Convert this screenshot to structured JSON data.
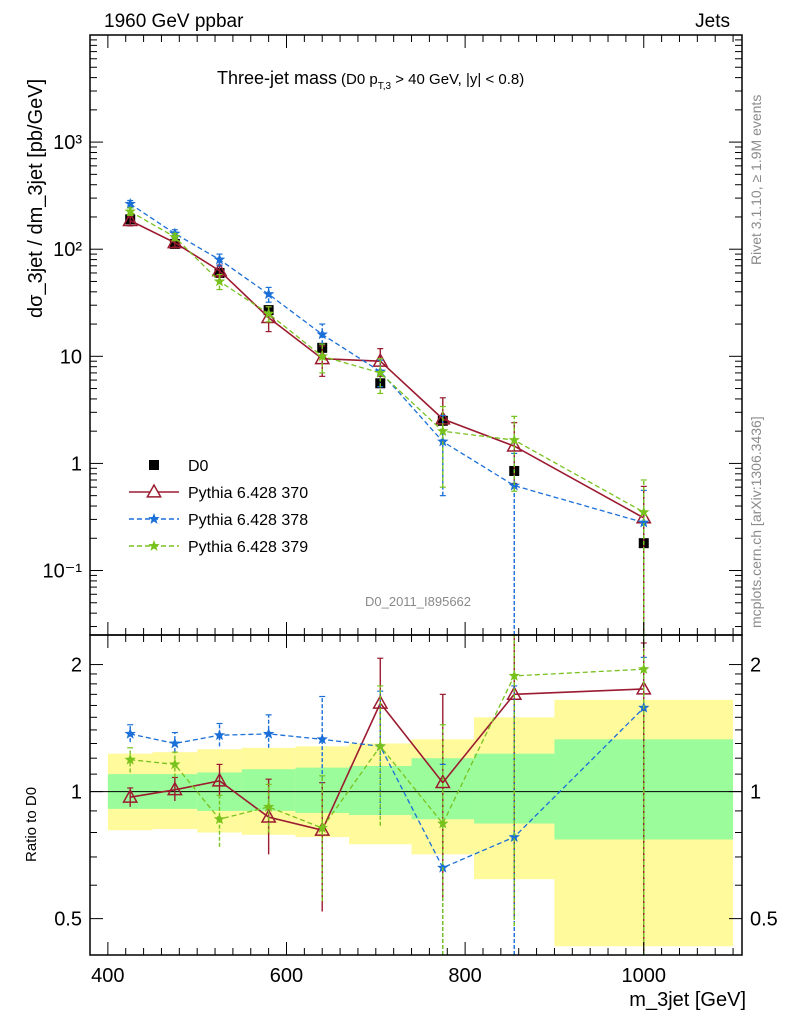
{
  "header": {
    "energy": "1960 GeV ppbar",
    "process": "Jets",
    "rivet_version": "Rivet 3.1.10, ≥ 1.9M events",
    "source": "mcplots.cern.ch [arXiv:1306.3436]",
    "analysis_id": "D0_2011_I895662"
  },
  "main_title": {
    "main": "Three-jet mass",
    "cut_prefix": "(D0 p",
    "cut_sub": "T,3",
    "cut_suffix": " > 40 GeV, |y| < 0.8)"
  },
  "legend": [
    "D0",
    "Pythia 6.428 370",
    "Pythia 6.428 378",
    "Pythia 6.428 379"
  ],
  "colors": {
    "data": "#000000",
    "p370": "#9b1b30",
    "p378": "#1a6fd8",
    "p379": "#78c21e",
    "band_inner": "#9bfc9b",
    "band_outer": "#fffa9c"
  },
  "chart_data": [
    {
      "type": "scatter",
      "panel": "main",
      "ylabel": "dσ_3jet / dm_3jet [pb/GeV]",
      "yscale": "log",
      "ylim": [
        0.025,
        10000
      ],
      "xlim": [
        380,
        1110
      ],
      "y_tick_labels": [
        "10⁻¹",
        "1",
        "10",
        "10²",
        "10³"
      ],
      "x": [
        425,
        475,
        525,
        580,
        640,
        705,
        775,
        855,
        1000
      ],
      "xerr": [
        25,
        25,
        25,
        30,
        30,
        35,
        35,
        45,
        100
      ],
      "series": [
        {
          "name": "D0",
          "style": "points",
          "values": [
            190,
            112,
            60,
            27,
            12,
            5.6,
            2.5,
            0.85,
            0.18
          ]
        },
        {
          "name": "Pythia 6.428 370",
          "style": "line-triangle",
          "values": [
            185,
            115,
            63,
            23,
            9.5,
            9,
            2.6,
            1.45,
            0.31
          ],
          "err": [
            [
              20,
              15
            ],
            [
              10,
              10
            ],
            [
              8,
              8
            ],
            [
              6,
              6
            ],
            [
              3,
              3
            ],
            [
              2.5,
              2.8
            ],
            [
              1,
              1.5
            ],
            [
              0.8,
              0.95
            ],
            [
              0.3,
              0.3
            ]
          ]
        },
        {
          "name": "Pythia 6.428 378",
          "style": "dashed-star",
          "values": [
            265,
            140,
            80,
            38,
            16,
            7.2,
            1.6,
            0.62,
            0.28
          ],
          "err": [
            [
              20,
              20
            ],
            [
              12,
              12
            ],
            [
              10,
              10
            ],
            [
              6,
              6
            ],
            [
              3,
              4
            ],
            [
              2,
              2
            ],
            [
              1.1,
              1.2
            ],
            [
              0.62,
              0.62
            ],
            [
              0.28,
              0.28
            ]
          ]
        },
        {
          "name": "Pythia 6.428 379",
          "style": "dashed-star",
          "values": [
            225,
            130,
            50,
            25,
            10,
            7,
            2,
            1.65,
            0.35
          ],
          "err": [
            [
              18,
              18
            ],
            [
              10,
              10
            ],
            [
              8,
              8
            ],
            [
              4,
              4
            ],
            [
              3,
              3
            ],
            [
              2.5,
              2.5
            ],
            [
              1.4,
              1.4
            ],
            [
              1.1,
              1.1
            ],
            [
              0.35,
              0.35
            ]
          ]
        }
      ]
    },
    {
      "type": "scatter",
      "panel": "ratio",
      "xlabel": "m_3jet [GeV]",
      "ylabel": "Ratio to D0",
      "yscale": "log",
      "ylim": [
        0.41,
        2.35
      ],
      "xlim": [
        380,
        1110
      ],
      "x_ticks": [
        400,
        600,
        800,
        1000
      ],
      "y_ticks": [
        0.5,
        1,
        2
      ],
      "reference_line": 1,
      "bins": [
        400,
        450,
        500,
        550,
        610,
        670,
        740,
        810,
        900,
        1100
      ],
      "band_inner": [
        [
          0.91,
          1.1
        ],
        [
          0.91,
          1.1
        ],
        [
          0.9,
          1.11
        ],
        [
          0.9,
          1.13
        ],
        [
          0.89,
          1.14
        ],
        [
          0.88,
          1.15
        ],
        [
          0.86,
          1.2
        ],
        [
          0.84,
          1.23
        ],
        [
          0.77,
          1.33
        ]
      ],
      "band_outer": [
        [
          0.81,
          1.23
        ],
        [
          0.815,
          1.24
        ],
        [
          0.8,
          1.26
        ],
        [
          0.79,
          1.27
        ],
        [
          0.78,
          1.28
        ],
        [
          0.75,
          1.3
        ],
        [
          0.71,
          1.33
        ],
        [
          0.62,
          1.5
        ],
        [
          0.43,
          1.65
        ]
      ],
      "x": [
        425,
        475,
        525,
        580,
        640,
        705,
        775,
        855,
        1000
      ],
      "series": [
        {
          "name": "Pythia 6.428 370",
          "values": [
            0.97,
            1.01,
            1.06,
            0.87,
            0.81,
            1.62,
            1.05,
            1.7,
            1.75
          ],
          "err": [
            [
              0.05,
              0.05
            ],
            [
              0.06,
              0.07
            ],
            [
              0.09,
              0.1
            ],
            [
              0.16,
              0.2
            ],
            [
              0.29,
              0.24
            ],
            [
              0.35,
              0.45
            ],
            [
              0.5,
              0.65
            ],
            [
              1.2,
              0.7
            ],
            [
              1.5,
              0.5
            ]
          ]
        },
        {
          "name": "Pythia 6.428 378",
          "values": [
            1.37,
            1.3,
            1.36,
            1.37,
            1.33,
            1.28,
            0.66,
            0.78,
            1.58
          ],
          "err": [
            [
              0.06,
              0.07
            ],
            [
              0.06,
              0.08
            ],
            [
              0.08,
              0.09
            ],
            [
              0.1,
              0.15
            ],
            [
              0.3,
              0.35
            ],
            [
              0.4,
              0.45
            ],
            [
              0.7,
              0.5
            ],
            [
              1.0,
              1.0
            ],
            [
              1.5,
              0.5
            ]
          ]
        },
        {
          "name": "Pythia 6.428 379",
          "values": [
            1.19,
            1.16,
            0.86,
            0.92,
            0.82,
            1.28,
            0.84,
            1.88,
            1.95
          ],
          "err": [
            [
              0.08,
              0.08
            ],
            [
              0.08,
              0.08
            ],
            [
              0.12,
              0.12
            ],
            [
              0.12,
              0.12
            ],
            [
              0.27,
              0.27
            ],
            [
              0.45,
              0.5
            ],
            [
              0.6,
              0.6
            ],
            [
              1.4,
              1.4
            ],
            [
              1.6,
              1.6
            ]
          ]
        }
      ]
    }
  ]
}
